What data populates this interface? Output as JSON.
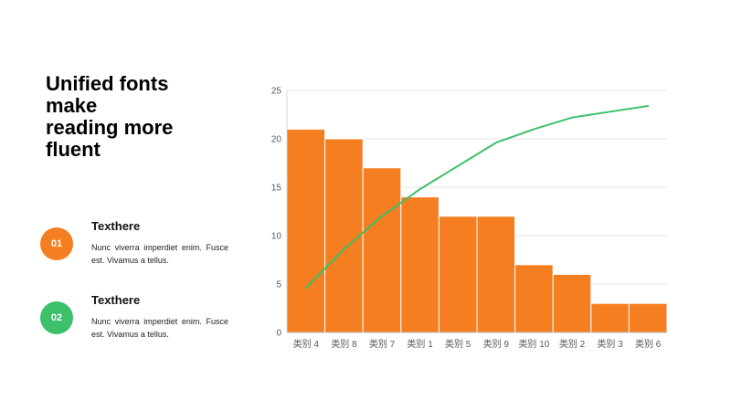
{
  "title": {
    "line1": "Unified fonts",
    "line2": "make",
    "line3": "reading more",
    "line4": "fluent"
  },
  "items": [
    {
      "badge": "01",
      "badge_color": "#F47E20",
      "heading": "Texthere",
      "text": "Nunc viverra imperdiet enim. Fusce est. Vivamus a tellus."
    },
    {
      "badge": "02",
      "badge_color": "#3CC06A",
      "heading": "Texthere",
      "text": "Nunc viverra imperdiet enim. Fusce est. Vivamus a tellus."
    }
  ],
  "chart_data": {
    "type": "bar",
    "categories": [
      "类别 4",
      "类别 8",
      "类别 7",
      "类别 1",
      "类别 5",
      "类别 9",
      "类别 10",
      "类别 2",
      "类别 3",
      "类别 6"
    ],
    "series": [
      {
        "type": "bar",
        "color": "#F47E20",
        "values": [
          21,
          20,
          17,
          14,
          12,
          12,
          7,
          6,
          3,
          3
        ]
      },
      {
        "type": "line",
        "color": "#3CC06A",
        "values": [
          4.6,
          8.6,
          12.0,
          14.8,
          17.2,
          19.6,
          21.0,
          22.2,
          22.8,
          23.4
        ]
      }
    ],
    "ylim": [
      0,
      25
    ],
    "yticks": [
      0,
      5,
      10,
      15,
      20,
      25
    ],
    "secondary_axis": {
      "ylim": [
        0,
        25
      ],
      "hidden": true
    },
    "grid": true,
    "legend": "none",
    "title": "",
    "xlabel": "",
    "ylabel": ""
  }
}
